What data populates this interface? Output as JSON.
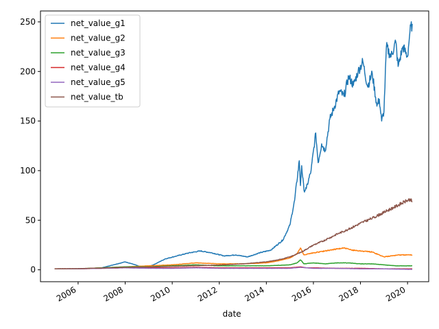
{
  "chart_data": {
    "type": "line",
    "title": "",
    "xlabel": "date",
    "ylabel": "",
    "xlim": [
      2004.4,
      2020.9
    ],
    "ylim": [
      -12,
      261
    ],
    "grid": false,
    "legend_position": "top-left",
    "x_ticks": [
      2006,
      2008,
      2010,
      2012,
      2014,
      2016,
      2018,
      2020
    ],
    "x_tick_labels": [
      "2006",
      "2008",
      "2010",
      "2012",
      "2014",
      "2016",
      "2018",
      "2020"
    ],
    "y_ticks": [
      0,
      50,
      100,
      150,
      200,
      250
    ],
    "y_tick_labels": [
      "0",
      "50",
      "100",
      "150",
      "200",
      "250"
    ],
    "series": [
      {
        "name": "net_value_g1",
        "color": "#1f77b4",
        "x": [
          2005.0,
          2006.0,
          2007.0,
          2007.5,
          2008.0,
          2008.3,
          2008.8,
          2009.2,
          2009.7,
          2010.2,
          2010.7,
          2011.2,
          2011.7,
          2012.2,
          2012.7,
          2013.2,
          2013.7,
          2014.2,
          2014.7,
          2015.0,
          2015.2,
          2015.4,
          2015.45,
          2015.5,
          2015.6,
          2015.7,
          2015.9,
          2016.1,
          2016.2,
          2016.35,
          2016.5,
          2016.7,
          2016.9,
          2017.1,
          2017.3,
          2017.5,
          2017.7,
          2017.9,
          2018.1,
          2018.3,
          2018.5,
          2018.7,
          2018.8,
          2018.9,
          2019.0,
          2019.1,
          2019.3,
          2019.5,
          2019.6,
          2019.8,
          2020.0,
          2020.1,
          2020.2
        ],
        "values": [
          1,
          1,
          2,
          5,
          8,
          6,
          2,
          5,
          11,
          14,
          17,
          19,
          17,
          14,
          15,
          13,
          17,
          20,
          30,
          45,
          70,
          110,
          85,
          105,
          80,
          82,
          100,
          138,
          108,
          127,
          120,
          152,
          165,
          180,
          175,
          195,
          186,
          200,
          210,
          185,
          198,
          165,
          172,
          150,
          160,
          225,
          215,
          230,
          205,
          225,
          215,
          240,
          248
        ]
      },
      {
        "name": "net_value_g2",
        "color": "#ff7f0e",
        "x": [
          2005.0,
          2006.0,
          2007.0,
          2008.0,
          2009.0,
          2010.0,
          2011.0,
          2012.0,
          2013.0,
          2014.0,
          2014.5,
          2015.0,
          2015.3,
          2015.45,
          2015.6,
          2016.0,
          2016.5,
          2017.0,
          2017.3,
          2017.6,
          2018.0,
          2018.5,
          2019.0,
          2019.3,
          2019.6,
          2020.0,
          2020.2
        ],
        "values": [
          1,
          1,
          2,
          3,
          4,
          5,
          7,
          6,
          6,
          7,
          9,
          12,
          16,
          22,
          15,
          17,
          19,
          21,
          22,
          20,
          19,
          18,
          13,
          14,
          15,
          15,
          15
        ]
      },
      {
        "name": "net_value_g3",
        "color": "#2ca02c",
        "x": [
          2005.0,
          2006.0,
          2007.0,
          2008.0,
          2009.0,
          2010.0,
          2011.0,
          2012.0,
          2013.0,
          2014.0,
          2015.0,
          2015.3,
          2015.45,
          2015.6,
          2016.0,
          2016.5,
          2017.0,
          2017.5,
          2018.0,
          2018.5,
          2019.0,
          2019.5,
          2020.0,
          2020.2
        ],
        "values": [
          1,
          1,
          2,
          3,
          3,
          4,
          5,
          4,
          4,
          4,
          5,
          7,
          10,
          6,
          7,
          6,
          7,
          7,
          6,
          6,
          5,
          4,
          4,
          4
        ]
      },
      {
        "name": "net_value_g4",
        "color": "#d62728",
        "x": [
          2005.0,
          2006.0,
          2007.0,
          2008.0,
          2009.0,
          2010.0,
          2011.0,
          2012.0,
          2013.0,
          2014.0,
          2015.0,
          2015.45,
          2015.7,
          2016.0,
          2017.0,
          2018.0,
          2019.0,
          2020.0,
          2020.2
        ],
        "values": [
          1,
          1,
          1.5,
          2,
          2,
          2,
          2.5,
          2,
          2,
          2,
          2,
          3,
          2,
          2,
          1.5,
          1.5,
          1,
          1,
          1
        ]
      },
      {
        "name": "net_value_g5",
        "color": "#9467bd",
        "x": [
          2005.0,
          2006.0,
          2007.0,
          2008.0,
          2009.0,
          2010.0,
          2011.0,
          2012.0,
          2013.0,
          2014.0,
          2015.0,
          2015.45,
          2016.0,
          2017.0,
          2018.0,
          2019.0,
          2020.0,
          2020.2
        ],
        "values": [
          1,
          1,
          1.5,
          2,
          1.5,
          1.5,
          2,
          1.5,
          1.5,
          1.5,
          1.5,
          2.5,
          1.5,
          1.5,
          1,
          1,
          0.5,
          0.5
        ]
      },
      {
        "name": "net_value_tb",
        "color": "#8c564b",
        "x": [
          2005.0,
          2006.0,
          2007.0,
          2008.0,
          2009.0,
          2010.0,
          2011.0,
          2012.0,
          2013.0,
          2014.0,
          2014.5,
          2015.0,
          2015.5,
          2016.0,
          2016.5,
          2017.0,
          2017.5,
          2018.0,
          2018.5,
          2019.0,
          2019.5,
          2020.0,
          2020.1,
          2020.2
        ],
        "values": [
          1,
          1.2,
          1.8,
          2.5,
          2.8,
          3.5,
          4.2,
          4.8,
          6,
          8,
          10,
          13,
          18,
          25,
          30,
          36,
          41,
          47,
          52,
          58,
          64,
          70,
          71,
          69
        ]
      }
    ]
  }
}
